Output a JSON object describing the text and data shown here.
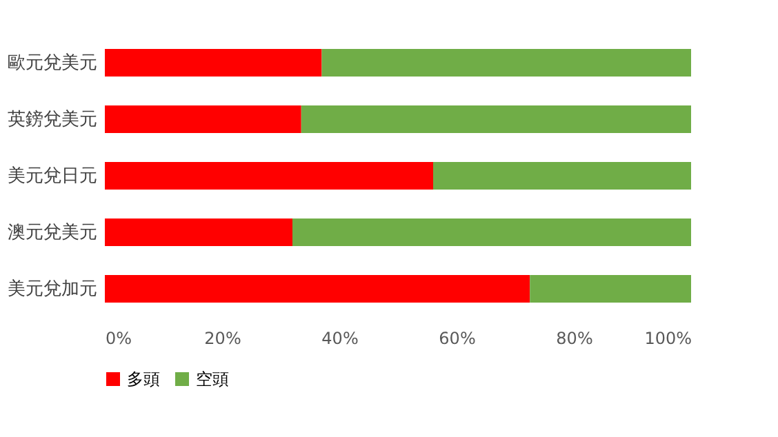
{
  "chart_data": {
    "type": "bar",
    "orientation": "horizontal",
    "stacked": true,
    "categories": [
      "歐元兌美元",
      "英鎊兌美元",
      "美元兌日元",
      "澳元兌美元",
      "美元兌加元"
    ],
    "series": [
      {
        "name": "多頭",
        "color": "#ff0000",
        "values": [
          37,
          33.5,
          56,
          32,
          72.5
        ]
      },
      {
        "name": "空頭",
        "color": "#70ad47",
        "values": [
          63,
          66.5,
          44,
          68,
          27.5
        ]
      }
    ],
    "xlim": [
      0,
      100
    ],
    "xticks": [
      {
        "value": 0,
        "label": "0%"
      },
      {
        "value": 20,
        "label": "20%"
      },
      {
        "value": 40,
        "label": "40%"
      },
      {
        "value": 60,
        "label": "60%"
      },
      {
        "value": 80,
        "label": "80%"
      },
      {
        "value": 100,
        "label": "100%"
      }
    ],
    "grid": false,
    "legend": "bottom"
  }
}
